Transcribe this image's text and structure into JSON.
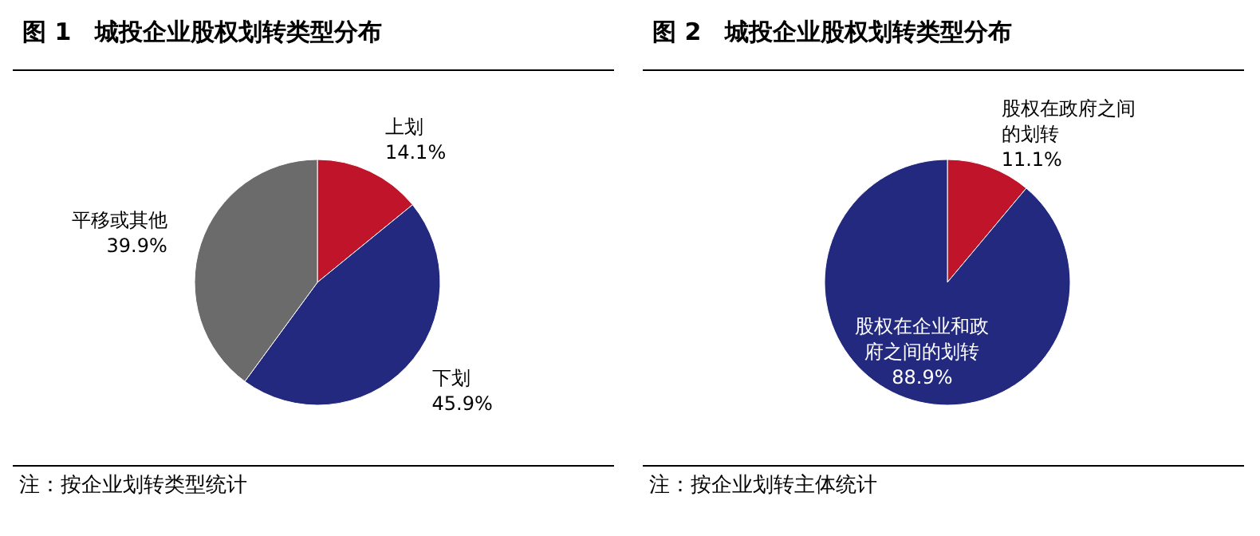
{
  "chart_data": [
    {
      "type": "pie",
      "title": "图 1　城投企业股权划转类型分布",
      "categories": [
        "上划",
        "下划",
        "平移或其他"
      ],
      "values": [
        14.1,
        45.9,
        39.9
      ],
      "colors": [
        "#c0142a",
        "#22297e",
        "#6b6b6b"
      ],
      "value_labels": [
        "14.1%",
        "45.9%",
        "39.9%"
      ],
      "annotations": [
        "注：按企业划转类型统计"
      ]
    },
    {
      "type": "pie",
      "title": "图 2　城投企业股权划转类型分布",
      "categories": [
        "股权在政府之间的划转",
        "股权在企业和政府之间的划转"
      ],
      "values": [
        11.1,
        88.9
      ],
      "colors": [
        "#c0142a",
        "#22297e"
      ],
      "value_labels": [
        "11.1%",
        "88.9%"
      ],
      "annotations": [
        "注：按企业划转主体统计"
      ]
    }
  ]
}
